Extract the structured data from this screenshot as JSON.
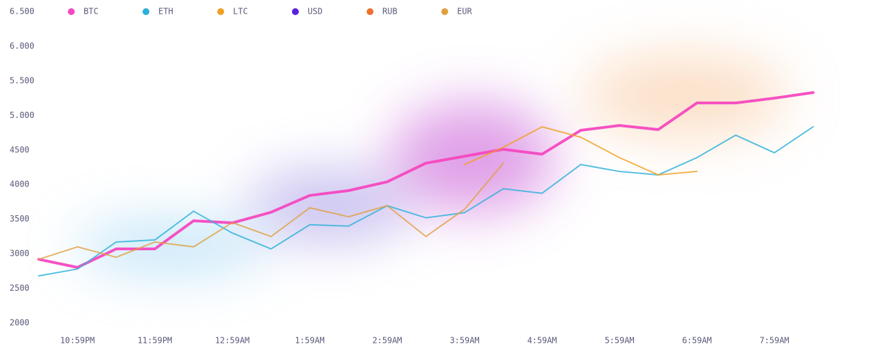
{
  "chart_data": {
    "type": "line",
    "categories": [
      null,
      "10:59PM",
      null,
      "11:59PM",
      null,
      "12:59AM",
      null,
      "1:59AM",
      null,
      "2:59AM",
      null,
      "3:59AM",
      null,
      "4:59AM",
      null,
      "5:59AM",
      null,
      "6:59AM",
      null,
      "7:59AM",
      null
    ],
    "series": [
      {
        "name": "BTC",
        "color": "#f548c0",
        "values": [
          2920,
          2803,
          3070,
          3070,
          3477,
          3447,
          3600,
          3843,
          3913,
          4040,
          4310,
          4410,
          4510,
          4440,
          4785,
          4855,
          4795,
          5180,
          5180,
          5250,
          5330
        ]
      },
      {
        "name": "ETH",
        "color": "#2ab0d8",
        "values": [
          2680,
          2780,
          3170,
          3200,
          3615,
          3300,
          3070,
          3420,
          3400,
          3695,
          3520,
          3595,
          3940,
          3875,
          4290,
          4190,
          4140,
          4390,
          4715,
          4460,
          4835
        ]
      },
      {
        "name": "LTC",
        "color": "#f0a020",
        "values": [
          null,
          null,
          null,
          null,
          null,
          null,
          null,
          null,
          null,
          null,
          null,
          4290,
          4540,
          4835,
          4685,
          4390,
          4140,
          4190,
          null,
          null,
          null
        ]
      },
      {
        "name": "USD",
        "color": "#5a20e0",
        "values": [
          null,
          null,
          null,
          null,
          null,
          null,
          null,
          null,
          null,
          null,
          null,
          null,
          null,
          null,
          null,
          null,
          null,
          null,
          null,
          null,
          null
        ]
      },
      {
        "name": "RUB",
        "color": "#f07030",
        "values": [
          null,
          null,
          null,
          null,
          null,
          null,
          null,
          null,
          null,
          null,
          null,
          null,
          null,
          null,
          null,
          null,
          null,
          null,
          null,
          null,
          null
        ]
      },
      {
        "name": "EUR",
        "color": "#e0a040",
        "values": [
          2920,
          3100,
          2950,
          3170,
          3100,
          3450,
          3250,
          3665,
          3535,
          3695,
          3250,
          3645,
          4310,
          null,
          null,
          null,
          null,
          null,
          null,
          null,
          null
        ]
      }
    ],
    "ylim": [
      2000,
      6500
    ],
    "yticks": [
      2000,
      2500,
      3000,
      3500,
      4000,
      4500,
      {
        "value": 5000,
        "label": "5.000"
      },
      {
        "value": 5500,
        "label": "5.500"
      },
      {
        "value": 6000,
        "label": "6.000"
      },
      {
        "value": 6500,
        "label": "6.500"
      }
    ],
    "grid": false
  }
}
